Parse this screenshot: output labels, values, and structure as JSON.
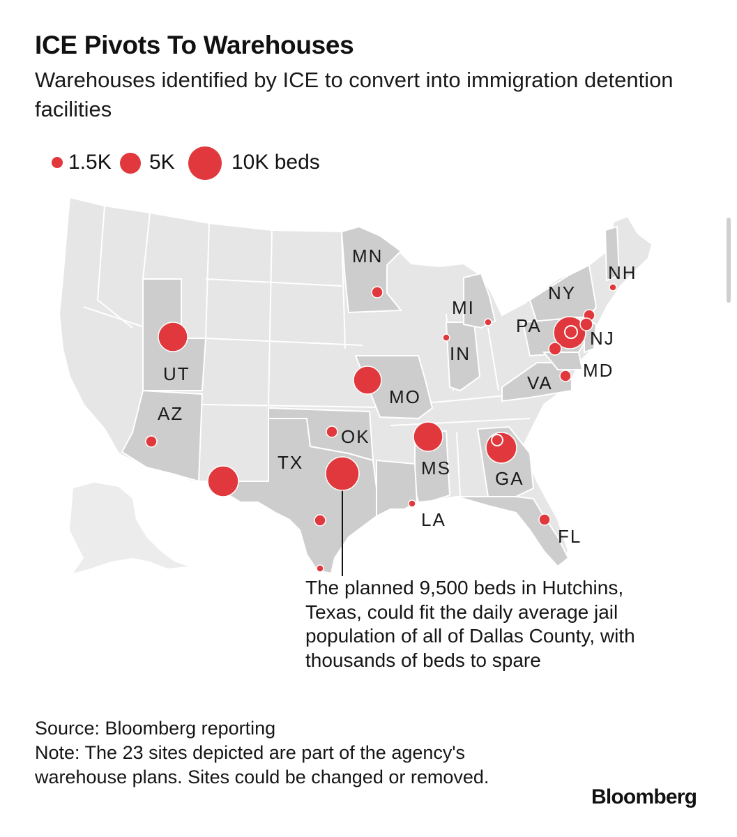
{
  "header": {
    "title": "ICE Pivots To Warehouses",
    "subtitle": "Warehouses identified by ICE to convert into immigration detention facilities"
  },
  "legend": {
    "items": [
      {
        "label": "1.5K",
        "beds": 1500
      },
      {
        "label": "5K",
        "beds": 5000
      },
      {
        "label": "10K beds",
        "beds": 10000
      }
    ]
  },
  "colors": {
    "marker": "#e0383c",
    "land": "#e6e6e6",
    "highlighted_state": "#cdcdcd",
    "border": "#ffffff"
  },
  "map": {
    "state_labels": [
      "MN",
      "NH",
      "NY",
      "MI",
      "PA",
      "NJ",
      "IN",
      "MD",
      "UT",
      "VA",
      "MO",
      "AZ",
      "OK",
      "TX",
      "MS",
      "GA",
      "LA",
      "FL"
    ],
    "sites": [
      {
        "state": "UT",
        "size": "large"
      },
      {
        "state": "AZ",
        "size": "small"
      },
      {
        "state": "TX",
        "size": "large"
      },
      {
        "state": "TX",
        "size": "large"
      },
      {
        "state": "TX",
        "size": "small"
      },
      {
        "state": "TX",
        "size": "small"
      },
      {
        "state": "OK",
        "size": "small"
      },
      {
        "state": "MN",
        "size": "small"
      },
      {
        "state": "MO",
        "size": "large"
      },
      {
        "state": "MS",
        "size": "large"
      },
      {
        "state": "LA",
        "size": "small"
      },
      {
        "state": "GA",
        "size": "large"
      },
      {
        "state": "GA",
        "size": "small"
      },
      {
        "state": "FL",
        "size": "small"
      },
      {
        "state": "IN",
        "size": "small"
      },
      {
        "state": "MI",
        "size": "small"
      },
      {
        "state": "PA",
        "size": "large"
      },
      {
        "state": "PA",
        "size": "small"
      },
      {
        "state": "PA",
        "size": "small"
      },
      {
        "state": "NJ",
        "size": "small"
      },
      {
        "state": "NJ",
        "size": "small"
      },
      {
        "state": "MD",
        "size": "small"
      },
      {
        "state": "NH",
        "size": "small"
      }
    ]
  },
  "annotation": {
    "text": "The planned 9,500 beds in Hutchins, Texas, could fit the daily average jail population of all of Dallas County, with thousands of beds to spare"
  },
  "footer": {
    "source": "Source: Bloomberg reporting",
    "note": "Note: The 23 sites depicted are part of the agency's warehouse plans. Sites could be changed or removed."
  },
  "brand": "Bloomberg"
}
